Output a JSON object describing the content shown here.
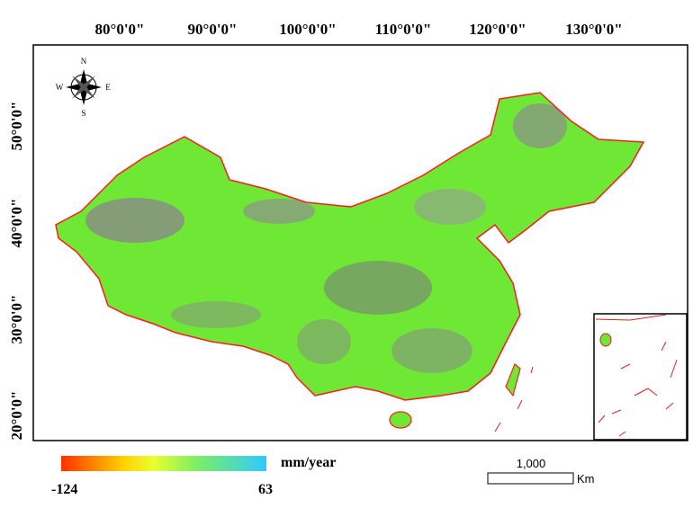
{
  "longitude_labels": [
    "80°0'0\"",
    "90°0'0\"",
    "100°0'0\"",
    "110°0'0\"",
    "120°0'0\"",
    "130°0'0\""
  ],
  "latitude_labels": [
    "50°0'0\"",
    "40°0'0\"",
    "30°0'0\"",
    "20°0'0\""
  ],
  "compass": {
    "n": "N",
    "s": "S",
    "e": "E",
    "w": "W"
  },
  "legend": {
    "unit": "mm/year",
    "min": "-124",
    "max": "63"
  },
  "scale_bar": {
    "label": "1,000",
    "unit": "Km"
  }
}
